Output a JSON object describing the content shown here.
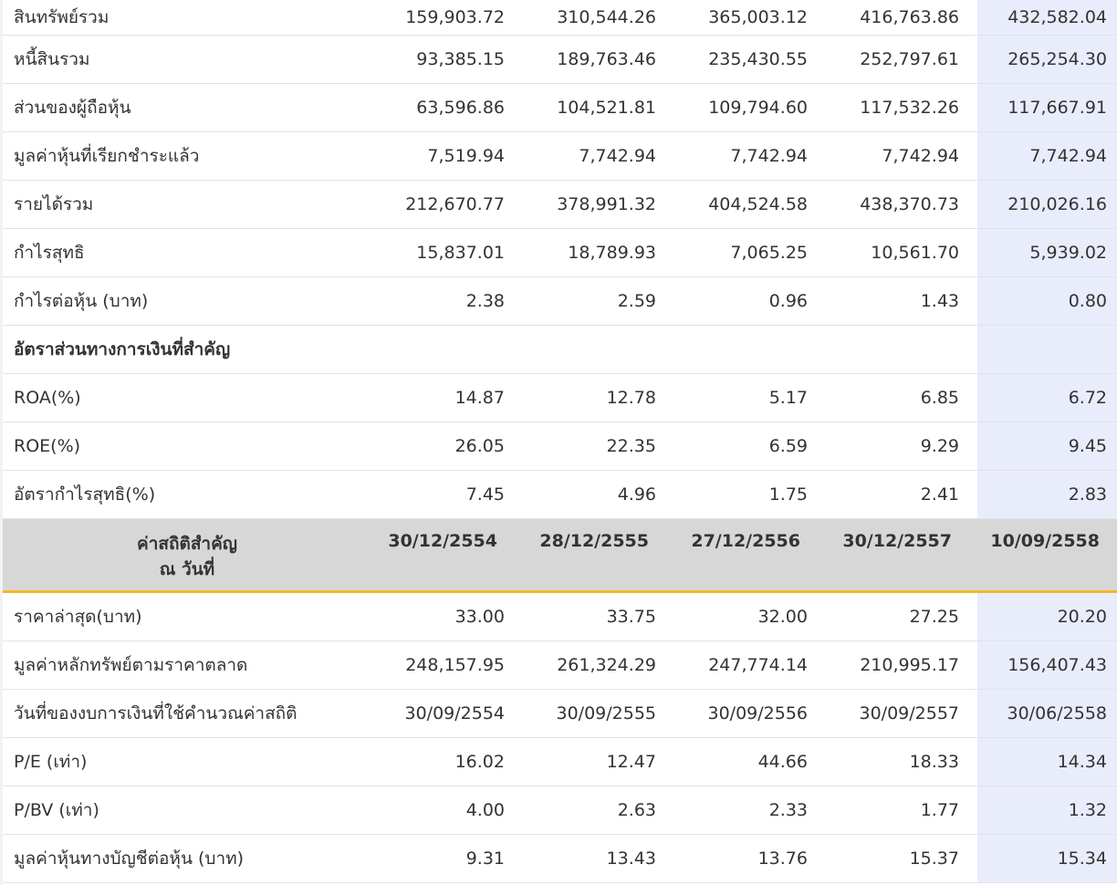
{
  "rows_top": [
    {
      "label": "สินทรัพย์รวม",
      "values": [
        "159,903.72",
        "310,544.26",
        "365,003.12",
        "416,763.86",
        "432,582.04"
      ]
    },
    {
      "label": "หนี้สินรวม",
      "values": [
        "93,385.15",
        "189,763.46",
        "235,430.55",
        "252,797.61",
        "265,254.30"
      ]
    },
    {
      "label": "ส่วนของผู้ถือหุ้น",
      "values": [
        "63,596.86",
        "104,521.81",
        "109,794.60",
        "117,532.26",
        "117,667.91"
      ]
    },
    {
      "label": "มูลค่าหุ้นที่เรียกชำระแล้ว",
      "values": [
        "7,519.94",
        "7,742.94",
        "7,742.94",
        "7,742.94",
        "7,742.94"
      ]
    },
    {
      "label": "รายได้รวม",
      "values": [
        "212,670.77",
        "378,991.32",
        "404,524.58",
        "438,370.73",
        "210,026.16"
      ]
    },
    {
      "label": "กำไรสุทธิ",
      "values": [
        "15,837.01",
        "18,789.93",
        "7,065.25",
        "10,561.70",
        "5,939.02"
      ]
    },
    {
      "label": "กำไรต่อหุ้น (บาท)",
      "values": [
        "2.38",
        "2.59",
        "0.96",
        "1.43",
        "0.80"
      ]
    }
  ],
  "ratios_section": {
    "title": "อัตราส่วนทางการเงินที่สำคัญ",
    "rows": [
      {
        "label": "ROA(%)",
        "values": [
          "14.87",
          "12.78",
          "5.17",
          "6.85",
          "6.72"
        ]
      },
      {
        "label": "ROE(%)",
        "values": [
          "26.05",
          "22.35",
          "6.59",
          "9.29",
          "9.45"
        ]
      },
      {
        "label": "อัตรากำไรสุทธิ(%)",
        "values": [
          "7.45",
          "4.96",
          "1.75",
          "2.41",
          "2.83"
        ]
      }
    ]
  },
  "stats_header": {
    "label_line1": "ค่าสถิติสำคัญ",
    "label_line2": "ณ วันที่",
    "dates": [
      "30/12/2554",
      "28/12/2555",
      "27/12/2556",
      "30/12/2557",
      "10/09/2558"
    ]
  },
  "stats_rows": [
    {
      "label": "ราคาล่าสุด(บาท)",
      "values": [
        "33.00",
        "33.75",
        "32.00",
        "27.25",
        "20.20"
      ]
    },
    {
      "label": "มูลค่าหลักทรัพย์ตามราคาตลาด",
      "values": [
        "248,157.95",
        "261,324.29",
        "247,774.14",
        "210,995.17",
        "156,407.43"
      ]
    },
    {
      "label": "วันที่ของงบการเงินที่ใช้คำนวณค่าสถิติ",
      "values": [
        "30/09/2554",
        "30/09/2555",
        "30/09/2556",
        "30/09/2557",
        "30/06/2558"
      ]
    },
    {
      "label": "P/E (เท่า)",
      "values": [
        "16.02",
        "12.47",
        "44.66",
        "18.33",
        "14.34"
      ]
    },
    {
      "label": "P/BV (เท่า)",
      "values": [
        "4.00",
        "2.63",
        "2.33",
        "1.77",
        "1.32"
      ]
    },
    {
      "label": "มูลค่าหุ้นทางบัญชีต่อหุ้น (บาท)",
      "values": [
        "9.31",
        "13.43",
        "13.76",
        "15.37",
        "15.34"
      ]
    }
  ],
  "colors": {
    "highlight_column": "#e9edfb",
    "header_background": "#d7d7d7",
    "header_underline": "#f4b625",
    "row_border": "#e3e3e3"
  }
}
